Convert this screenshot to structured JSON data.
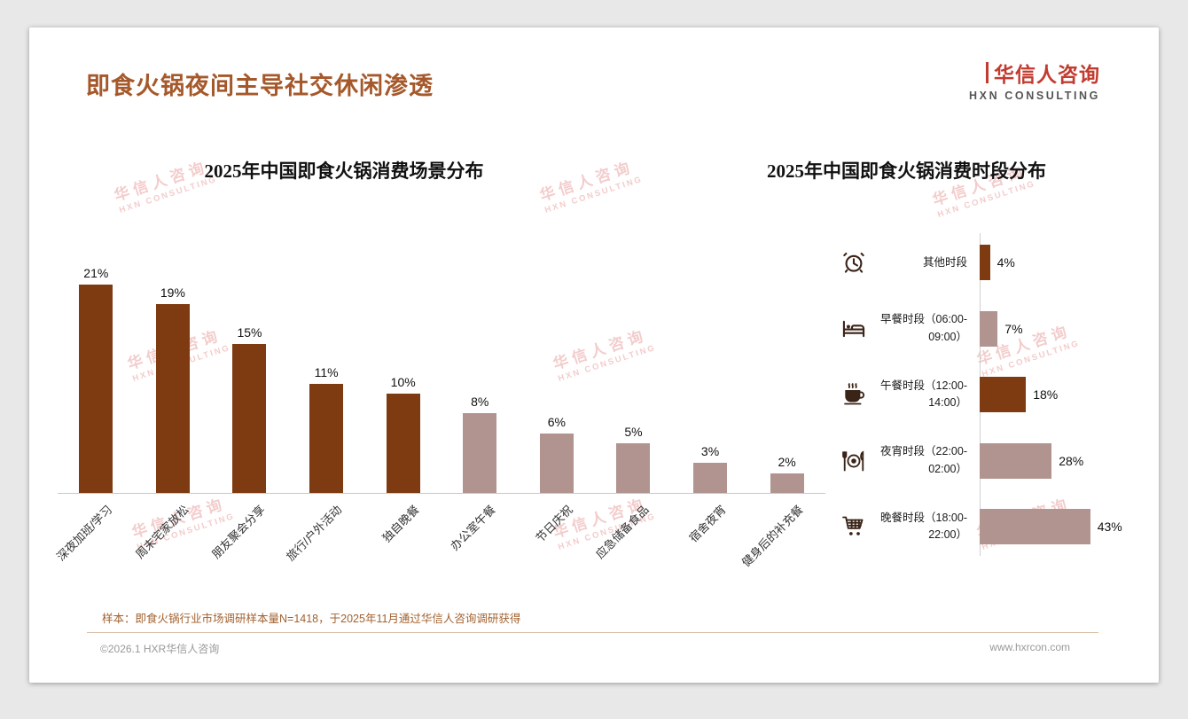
{
  "page": {
    "title": "即食火锅夜间主导社交休闲渗透",
    "logo": {
      "name": "华信人咨询",
      "sub": "HXN CONSULTING"
    },
    "watermark": {
      "line1": "华信人咨询",
      "line2": "HXN CONSULTING"
    },
    "sample_note": "样本：即食火锅行业市场调研样本量N=1418，于2025年11月通过华信人咨询调研获得",
    "footer": {
      "copyright": "©2026.1 HXR华信人咨询",
      "website": "www.hxrcon.com"
    }
  },
  "colors": {
    "bar_dark": "#7E3A10",
    "bar_light": "#B1948F",
    "title_brown": "#A5592B",
    "logo_red": "#C23B2F",
    "watermark_pink": "#ECABAB",
    "note_brown": "#A2612F",
    "footer_gray": "#999999"
  },
  "chart_data": [
    {
      "type": "bar",
      "orientation": "vertical",
      "title": "2025年中国即食火锅消费场景分布",
      "unit": "%",
      "categories": [
        "深夜加班/学习",
        "周末宅家放松",
        "朋友聚会分享",
        "旅行/户外活动",
        "独自晚餐",
        "办公室午餐",
        "节日庆祝",
        "应急储备食品",
        "宿舍夜宵",
        "健身后的补充餐"
      ],
      "values": [
        21,
        19,
        15,
        11,
        10,
        8,
        6,
        5,
        3,
        2
      ],
      "value_labels": [
        "21%",
        "19%",
        "15%",
        "11%",
        "10%",
        "8%",
        "6%",
        "5%",
        "3%",
        "2%"
      ],
      "bar_colors": [
        "dark",
        "dark",
        "dark",
        "dark",
        "dark",
        "light",
        "light",
        "light",
        "light",
        "light"
      ],
      "ylim": [
        0,
        23
      ],
      "grid": false,
      "legend": false
    },
    {
      "type": "bar",
      "orientation": "horizontal",
      "title": "2025年中国即食火锅消费时段分布",
      "unit": "%",
      "categories": [
        "其他时段",
        "早餐时段（06:00-09:00）",
        "午餐时段（12:00-14:00）",
        "夜宵时段（22:00-02:00）",
        "晚餐时段（18:00-22:00）"
      ],
      "values": [
        4,
        7,
        18,
        28,
        43
      ],
      "value_labels": [
        "4%",
        "7%",
        "18%",
        "28%",
        "43%"
      ],
      "bar_colors": [
        "dark",
        "light",
        "dark",
        "light",
        "light"
      ],
      "icons": [
        "alarm-clock",
        "bed",
        "coffee-cup",
        "dining-plate",
        "shopping-cart"
      ],
      "xlim": [
        0,
        50
      ],
      "grid": false,
      "legend": false
    }
  ]
}
